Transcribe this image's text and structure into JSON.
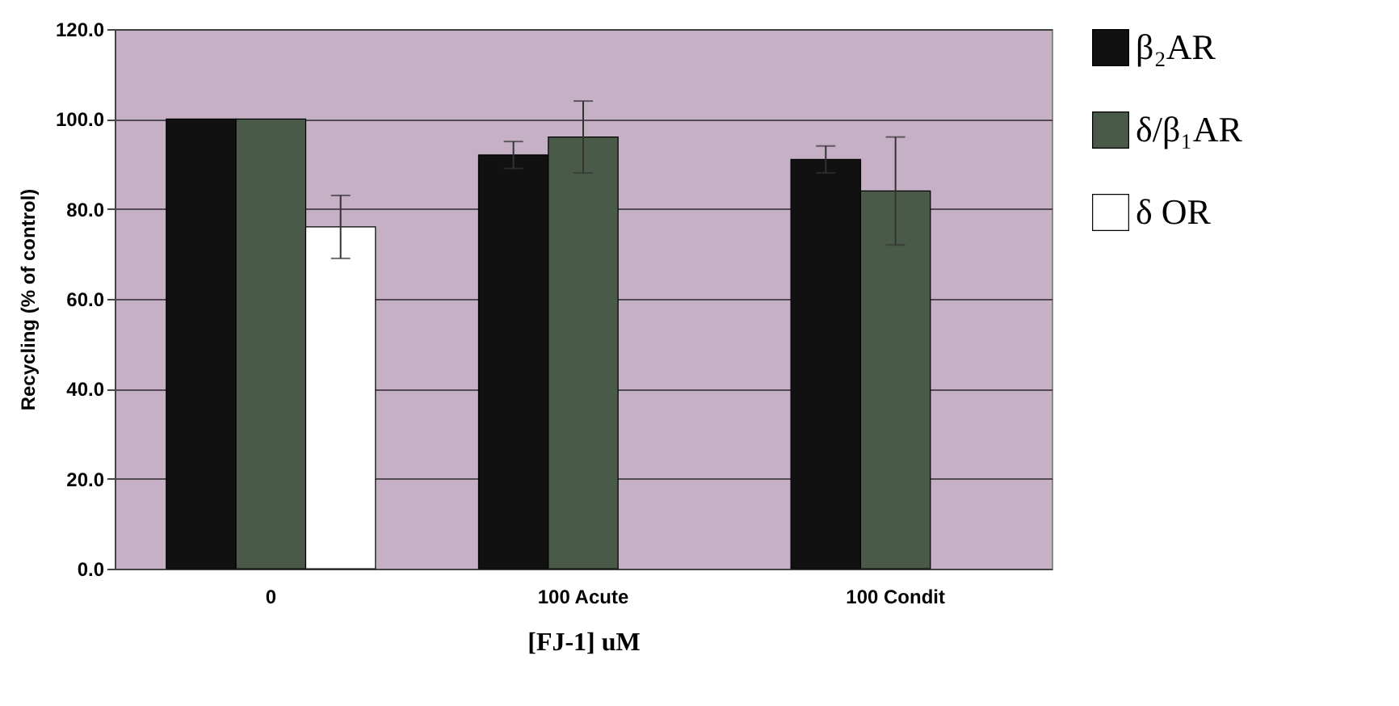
{
  "chart_data": {
    "type": "bar",
    "xlabel": "[FJ-1] uM",
    "ylabel": "Recycling (% of control)",
    "categories": [
      "0",
      "100 Acute",
      "100 Condit"
    ],
    "series": [
      {
        "name": "β₂AR",
        "color": "#111111",
        "values": [
          100,
          92,
          91
        ],
        "errors": [
          null,
          3,
          3
        ]
      },
      {
        "name": "δ/β₁AR",
        "color": "#4a5a48",
        "values": [
          100,
          96,
          84
        ],
        "errors": [
          null,
          8,
          12
        ]
      },
      {
        "name": "δ OR",
        "color": "#ffffff",
        "values": [
          76,
          null,
          null
        ],
        "errors": [
          7,
          null,
          null
        ]
      }
    ],
    "ylim": [
      0,
      120
    ],
    "yticks": [
      {
        "value": 0,
        "label": "0.0"
      },
      {
        "value": 20,
        "label": "20.0"
      },
      {
        "value": 40,
        "label": "40.0"
      },
      {
        "value": 60,
        "label": "60.0"
      },
      {
        "value": 80,
        "label": "80.0"
      },
      {
        "value": 100,
        "label": "100.0"
      },
      {
        "value": 120,
        "label": "120.0"
      }
    ],
    "grid": "y",
    "legend": "right"
  }
}
